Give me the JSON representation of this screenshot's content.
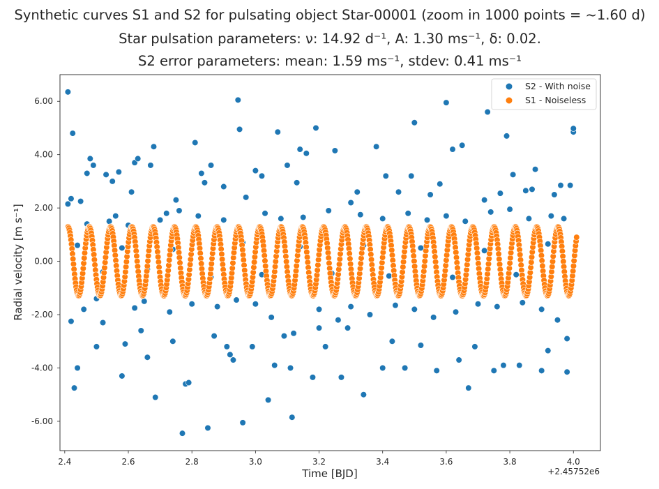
{
  "chart_data": {
    "type": "scatter",
    "title_lines": [
      "Synthetic curves S1 and S2 for pulsating object Star-00001 (zoom in 1000 points = ~1.60 d)",
      "Star pulsation parameters: ν: 14.92 d⁻¹, A: 1.30 ms⁻¹, δ: 0.02.",
      "S2 error parameters: mean: 1.59 ms⁻¹, stdev: 0.41 ms⁻¹"
    ],
    "xlabel": "Time [BJD]",
    "ylabel": "Radial velocity [m s⁻¹]",
    "x_offset_label": "+2.45752e6",
    "xlim": [
      2.385,
      4.085
    ],
    "ylim": [
      -7.1,
      7.0
    ],
    "x_ticks": [
      2.4,
      2.6,
      2.8,
      3.0,
      3.2,
      3.4,
      3.6,
      3.8,
      4.0
    ],
    "x_tick_labels": [
      "2.4",
      "2.6",
      "2.8",
      "3.0",
      "3.2",
      "3.4",
      "3.6",
      "3.8",
      "4.0"
    ],
    "y_ticks": [
      -6,
      -4,
      -2,
      0,
      2,
      4,
      6
    ],
    "y_tick_labels": [
      "-6.00",
      "-4.00",
      "-2.00",
      "0.00",
      "2.00",
      "4.00",
      "6.00"
    ],
    "grid": false,
    "legend_position": "top-right",
    "series": [
      {
        "name": "S2 - With noise",
        "color": "#1f77b4",
        "points": [
          [
            2.41,
            6.35
          ],
          [
            2.41,
            2.15
          ],
          [
            2.42,
            2.35
          ],
          [
            2.425,
            4.8
          ],
          [
            2.43,
            -4.75
          ],
          [
            2.44,
            -4.0
          ],
          [
            2.45,
            2.25
          ],
          [
            2.47,
            3.3
          ],
          [
            2.48,
            3.85
          ],
          [
            2.49,
            3.6
          ],
          [
            2.5,
            -3.2
          ],
          [
            2.52,
            -2.3
          ],
          [
            2.53,
            3.25
          ],
          [
            2.55,
            3.0
          ],
          [
            2.57,
            3.35
          ],
          [
            2.58,
            -4.3
          ],
          [
            2.59,
            -3.1
          ],
          [
            2.61,
            2.6
          ],
          [
            2.62,
            3.7
          ],
          [
            2.63,
            3.85
          ],
          [
            2.64,
            -2.6
          ],
          [
            2.66,
            -3.6
          ],
          [
            2.67,
            3.6
          ],
          [
            2.68,
            4.3
          ],
          [
            2.685,
            -5.1
          ],
          [
            2.72,
            1.8
          ],
          [
            2.74,
            -3.0
          ],
          [
            2.76,
            1.9
          ],
          [
            2.77,
            -6.45
          ],
          [
            2.78,
            -4.6
          ],
          [
            2.79,
            -4.55
          ],
          [
            2.81,
            4.45
          ],
          [
            2.83,
            3.3
          ],
          [
            2.84,
            2.95
          ],
          [
            2.85,
            -6.25
          ],
          [
            2.86,
            3.6
          ],
          [
            2.87,
            -2.8
          ],
          [
            2.9,
            2.8
          ],
          [
            2.91,
            -3.2
          ],
          [
            2.92,
            -3.5
          ],
          [
            2.93,
            -3.7
          ],
          [
            2.945,
            6.05
          ],
          [
            2.95,
            4.95
          ],
          [
            2.96,
            -6.05
          ],
          [
            2.97,
            2.4
          ],
          [
            2.99,
            -3.2
          ],
          [
            3.0,
            3.4
          ],
          [
            3.02,
            3.2
          ],
          [
            3.04,
            -5.2
          ],
          [
            3.06,
            -3.9
          ],
          [
            3.07,
            4.85
          ],
          [
            3.09,
            -2.8
          ],
          [
            3.1,
            3.6
          ],
          [
            3.11,
            -4.0
          ],
          [
            3.115,
            -5.85
          ],
          [
            3.13,
            2.95
          ],
          [
            3.14,
            4.2
          ],
          [
            3.16,
            4.05
          ],
          [
            3.18,
            -4.35
          ],
          [
            3.19,
            5.0
          ],
          [
            3.2,
            -2.5
          ],
          [
            3.22,
            -3.2
          ],
          [
            3.25,
            4.15
          ],
          [
            3.27,
            -4.35
          ],
          [
            3.29,
            -2.5
          ],
          [
            3.3,
            2.2
          ],
          [
            3.32,
            2.6
          ],
          [
            3.34,
            -5.0
          ],
          [
            3.38,
            4.3
          ],
          [
            3.4,
            -4.0
          ],
          [
            3.41,
            3.2
          ],
          [
            3.43,
            -3.0
          ],
          [
            3.45,
            2.6
          ],
          [
            3.47,
            -4.0
          ],
          [
            3.49,
            3.2
          ],
          [
            3.5,
            5.2
          ],
          [
            3.52,
            -3.15
          ],
          [
            3.55,
            2.5
          ],
          [
            3.57,
            -4.1
          ],
          [
            3.58,
            2.9
          ],
          [
            3.6,
            5.95
          ],
          [
            3.62,
            4.2
          ],
          [
            3.64,
            -3.7
          ],
          [
            3.65,
            4.35
          ],
          [
            3.67,
            -4.75
          ],
          [
            3.69,
            -3.2
          ],
          [
            3.72,
            2.3
          ],
          [
            3.73,
            5.6
          ],
          [
            3.75,
            -4.1
          ],
          [
            3.77,
            2.55
          ],
          [
            3.78,
            -3.9
          ],
          [
            3.79,
            4.7
          ],
          [
            3.81,
            3.25
          ],
          [
            3.83,
            -3.9
          ],
          [
            3.85,
            2.65
          ],
          [
            3.87,
            2.7
          ],
          [
            3.88,
            3.45
          ],
          [
            3.9,
            -4.1
          ],
          [
            3.92,
            -3.35
          ],
          [
            3.94,
            2.5
          ],
          [
            3.96,
            2.85
          ],
          [
            3.98,
            -4.15
          ],
          [
            4.0,
            4.85
          ],
          [
            4.0,
            4.98
          ],
          [
            3.99,
            2.85
          ],
          [
            3.98,
            -2.9
          ],
          [
            2.42,
            -2.25
          ],
          [
            2.46,
            -1.8
          ],
          [
            2.47,
            1.4
          ],
          [
            2.5,
            -1.4
          ],
          [
            2.54,
            1.5
          ],
          [
            2.56,
            1.7
          ],
          [
            2.6,
            1.35
          ],
          [
            2.62,
            -1.75
          ],
          [
            2.65,
            -1.5
          ],
          [
            2.7,
            1.55
          ],
          [
            2.73,
            -1.9
          ],
          [
            2.75,
            2.3
          ],
          [
            2.8,
            -1.6
          ],
          [
            2.82,
            1.7
          ],
          [
            2.88,
            -1.7
          ],
          [
            2.9,
            1.55
          ],
          [
            2.94,
            -1.45
          ],
          [
            3.0,
            -1.6
          ],
          [
            3.03,
            1.8
          ],
          [
            3.05,
            -2.1
          ],
          [
            3.08,
            1.6
          ],
          [
            3.12,
            -2.7
          ],
          [
            3.15,
            1.65
          ],
          [
            3.2,
            -1.8
          ],
          [
            3.23,
            1.9
          ],
          [
            3.26,
            -2.2
          ],
          [
            3.3,
            -1.7
          ],
          [
            3.33,
            1.75
          ],
          [
            3.36,
            -2.0
          ],
          [
            3.4,
            1.6
          ],
          [
            3.44,
            -1.65
          ],
          [
            3.48,
            1.8
          ],
          [
            3.5,
            -1.8
          ],
          [
            3.54,
            1.55
          ],
          [
            3.56,
            -2.1
          ],
          [
            3.6,
            1.7
          ],
          [
            3.63,
            -1.9
          ],
          [
            3.66,
            1.5
          ],
          [
            3.7,
            -1.6
          ],
          [
            3.74,
            1.85
          ],
          [
            3.76,
            -1.7
          ],
          [
            3.8,
            1.95
          ],
          [
            3.84,
            -1.55
          ],
          [
            3.86,
            1.6
          ],
          [
            3.9,
            -1.8
          ],
          [
            3.93,
            1.7
          ],
          [
            3.95,
            -2.2
          ],
          [
            3.97,
            1.6
          ],
          [
            2.44,
            0.6
          ],
          [
            2.52,
            -0.4
          ],
          [
            2.58,
            0.5
          ],
          [
            2.66,
            -0.3
          ],
          [
            2.74,
            0.45
          ],
          [
            2.86,
            -0.6
          ],
          [
            2.96,
            0.7
          ],
          [
            3.02,
            -0.5
          ],
          [
            3.14,
            0.55
          ],
          [
            3.24,
            -0.45
          ],
          [
            3.34,
            0.6
          ],
          [
            3.42,
            -0.55
          ],
          [
            3.52,
            0.5
          ],
          [
            3.62,
            -0.6
          ],
          [
            3.72,
            0.4
          ],
          [
            3.82,
            -0.5
          ],
          [
            3.92,
            0.65
          ]
        ]
      },
      {
        "name": "S1 - Noiseless",
        "color": "#ff7f0e",
        "model": "sinusoid",
        "amplitude": 1.3,
        "frequency_per_day": 14.92,
        "x_start": 2.41,
        "x_end": 4.01,
        "n_points": 1000
      }
    ]
  }
}
